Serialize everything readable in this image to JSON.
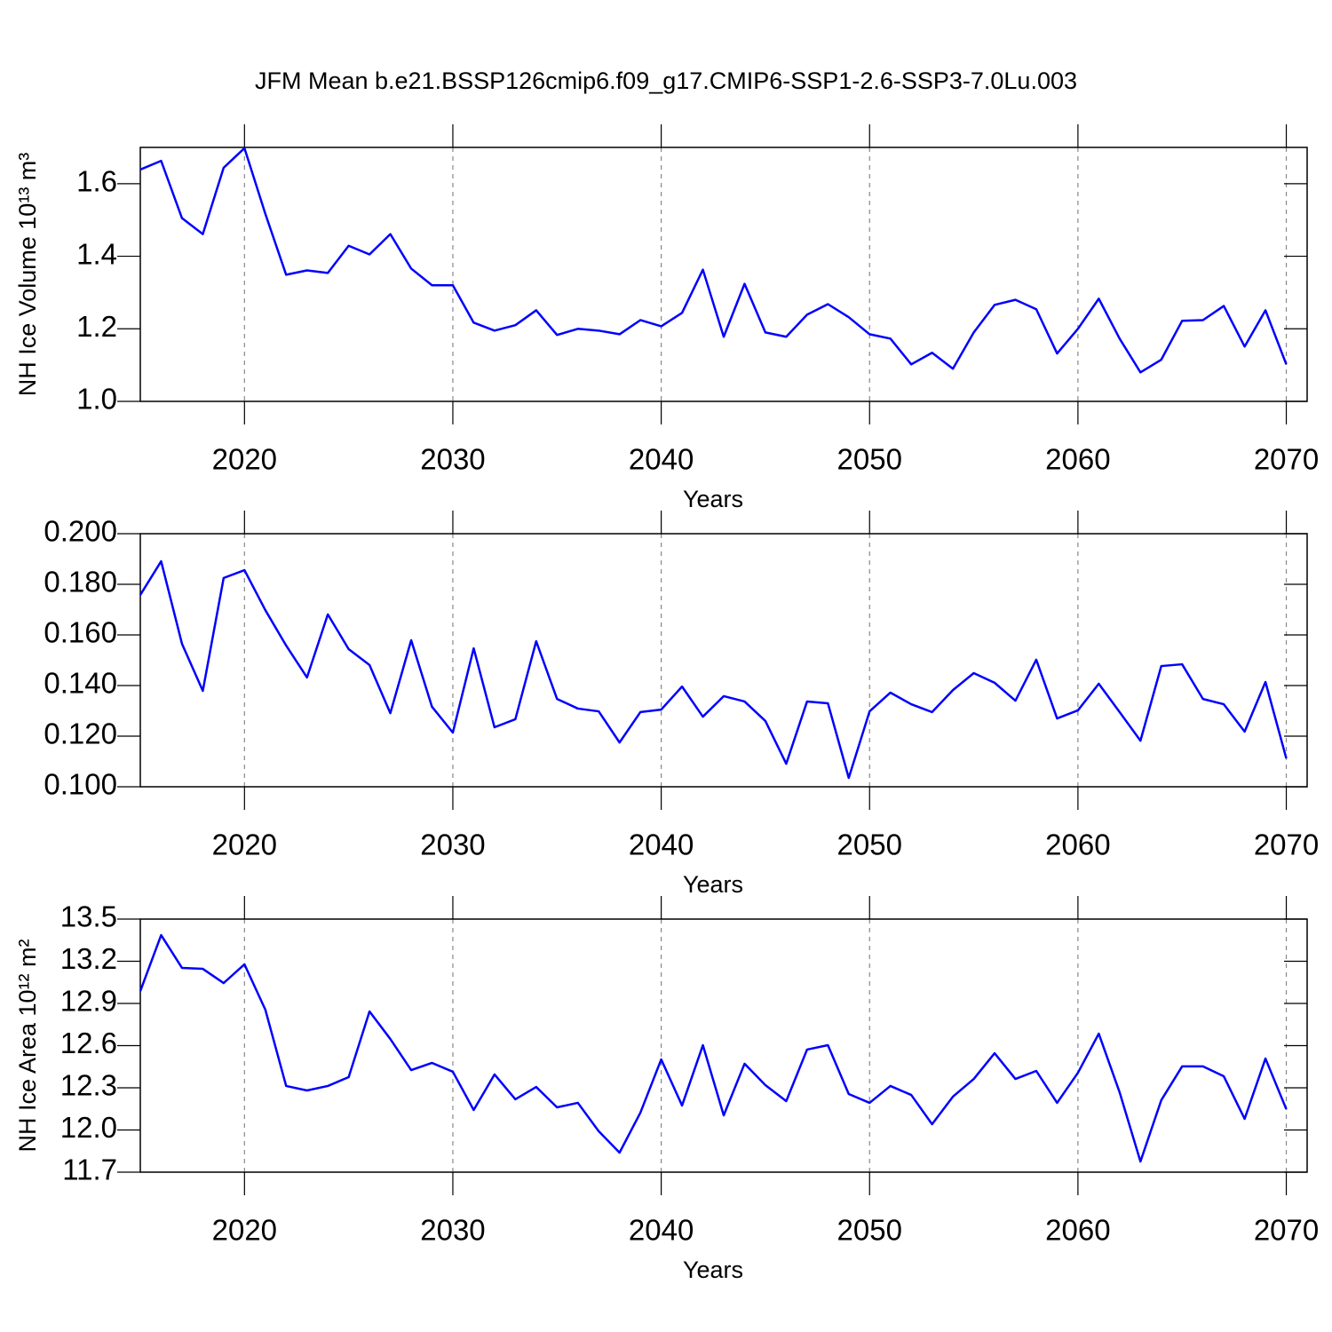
{
  "chart_data": [
    {
      "type": "line",
      "title": "JFM Mean b.e21.BSSP126cmip6.f09_g17.CMIP6-SSP1-2.6-SSP3-7.0Lu.003",
      "xlabel": "Years",
      "ylabel": "NH Ice Volume 10¹³ m³",
      "x": [
        2015,
        2016,
        2017,
        2018,
        2019,
        2020,
        2021,
        2022,
        2023,
        2024,
        2025,
        2026,
        2027,
        2028,
        2029,
        2030,
        2031,
        2032,
        2033,
        2034,
        2035,
        2036,
        2037,
        2038,
        2039,
        2040,
        2041,
        2042,
        2043,
        2044,
        2045,
        2046,
        2047,
        2048,
        2049,
        2050,
        2051,
        2052,
        2053,
        2054,
        2055,
        2056,
        2057,
        2058,
        2059,
        2060,
        2061,
        2062,
        2063,
        2064,
        2065,
        2066,
        2067,
        2068,
        2069,
        2070
      ],
      "series": [
        {
          "color": "#0000ff",
          "values": [
            1.639,
            1.663,
            1.505,
            1.461,
            1.644,
            1.698,
            1.517,
            1.349,
            1.361,
            1.354,
            1.429,
            1.405,
            1.461,
            1.366,
            1.32,
            1.32,
            1.217,
            1.195,
            1.21,
            1.251,
            1.183,
            1.2,
            1.195,
            1.185,
            1.224,
            1.207,
            1.244,
            1.363,
            1.178,
            1.324,
            1.19,
            1.178,
            1.239,
            1.268,
            1.232,
            1.185,
            1.173,
            1.102,
            1.134,
            1.09,
            1.19,
            1.266,
            1.28,
            1.254,
            1.132,
            1.2,
            1.283,
            1.173,
            1.08,
            1.115,
            1.222,
            1.224,
            1.263,
            1.151,
            1.251,
            1.102
          ]
        }
      ],
      "xlim": [
        2015,
        2071
      ],
      "xticks": [
        2020,
        2030,
        2040,
        2050,
        2060,
        2070
      ],
      "xgrid": true,
      "ylim": [
        1.0,
        1.7
      ],
      "yticks": [
        {
          "value": 1,
          "label": "1.0"
        },
        1.2,
        1.4,
        1.6
      ]
    },
    {
      "type": "line",
      "xlabel": "Years",
      "x": [
        2015,
        2016,
        2017,
        2018,
        2019,
        2020,
        2021,
        2022,
        2023,
        2024,
        2025,
        2026,
        2027,
        2028,
        2029,
        2030,
        2031,
        2032,
        2033,
        2034,
        2035,
        2036,
        2037,
        2038,
        2039,
        2040,
        2041,
        2042,
        2043,
        2044,
        2045,
        2046,
        2047,
        2048,
        2049,
        2050,
        2051,
        2052,
        2053,
        2054,
        2055,
        2056,
        2057,
        2058,
        2059,
        2060,
        2061,
        2062,
        2063,
        2064,
        2065,
        2066,
        2067,
        2068,
        2069,
        2070
      ],
      "series": [
        {
          "color": "#0000ff",
          "values": [
            0.1758,
            0.1891,
            0.1565,
            0.1379,
            0.1825,
            0.1856,
            0.1698,
            0.1558,
            0.1432,
            0.1681,
            0.1544,
            0.1481,
            0.1291,
            0.1579,
            0.1316,
            0.1214,
            0.1547,
            0.1235,
            0.1267,
            0.1575,
            0.1347,
            0.1309,
            0.1298,
            0.1175,
            0.1295,
            0.1305,
            0.1396,
            0.1277,
            0.1358,
            0.1337,
            0.126,
            0.1091,
            0.1337,
            0.133,
            0.1035,
            0.1298,
            0.1372,
            0.1326,
            0.1295,
            0.1382,
            0.1449,
            0.1411,
            0.134,
            0.1502,
            0.127,
            0.1302,
            0.1407,
            0.1295,
            0.1182,
            0.1477,
            0.1484,
            0.1347,
            0.1326,
            0.1218,
            0.1414,
            0.1112
          ]
        }
      ],
      "xlim": [
        2015,
        2071
      ],
      "xticks": [
        2020,
        2030,
        2040,
        2050,
        2060,
        2070
      ],
      "xgrid": true,
      "ylim": [
        0.1,
        0.2
      ],
      "yticks": [
        {
          "value": 0.1,
          "label": "0.100"
        },
        {
          "value": 0.12,
          "label": "0.120"
        },
        {
          "value": 0.14,
          "label": "0.140"
        },
        {
          "value": 0.16,
          "label": "0.160"
        },
        {
          "value": 0.18,
          "label": "0.180"
        },
        {
          "value": 0.2,
          "label": "0.200"
        }
      ]
    },
    {
      "type": "line",
      "xlabel": "Years",
      "ylabel": "NH Ice Area 10¹² m²",
      "x": [
        2015,
        2016,
        2017,
        2018,
        2019,
        2020,
        2021,
        2022,
        2023,
        2024,
        2025,
        2026,
        2027,
        2028,
        2029,
        2030,
        2031,
        2032,
        2033,
        2034,
        2035,
        2036,
        2037,
        2038,
        2039,
        2040,
        2041,
        2042,
        2043,
        2044,
        2045,
        2046,
        2047,
        2048,
        2049,
        2050,
        2051,
        2052,
        2053,
        2054,
        2055,
        2056,
        2057,
        2058,
        2059,
        2060,
        2061,
        2062,
        2063,
        2064,
        2065,
        2066,
        2067,
        2068,
        2069,
        2070
      ],
      "series": [
        {
          "color": "#0000ff",
          "values": [
            12.988,
            13.386,
            13.153,
            13.146,
            13.045,
            13.178,
            12.856,
            12.313,
            12.281,
            12.313,
            12.376,
            12.843,
            12.647,
            12.426,
            12.477,
            12.414,
            12.142,
            12.395,
            12.218,
            12.306,
            12.161,
            12.193,
            11.991,
            11.839,
            12.123,
            12.502,
            12.174,
            12.603,
            12.104,
            12.471,
            12.319,
            12.205,
            12.572,
            12.603,
            12.256,
            12.193,
            12.313,
            12.249,
            12.041,
            12.237,
            12.363,
            12.546,
            12.363,
            12.42,
            12.193,
            12.407,
            12.685,
            12.268,
            11.776,
            12.212,
            12.452,
            12.452,
            12.382,
            12.079,
            12.508,
            12.148
          ]
        }
      ],
      "xlim": [
        2015,
        2071
      ],
      "xticks": [
        2020,
        2030,
        2040,
        2050,
        2060,
        2070
      ],
      "xgrid": true,
      "ylim": [
        11.7,
        13.5
      ],
      "yticks": [
        11.7,
        {
          "value": 12,
          "label": "12.0"
        },
        12.3,
        12.6,
        12.9,
        13.2,
        13.5
      ]
    }
  ]
}
